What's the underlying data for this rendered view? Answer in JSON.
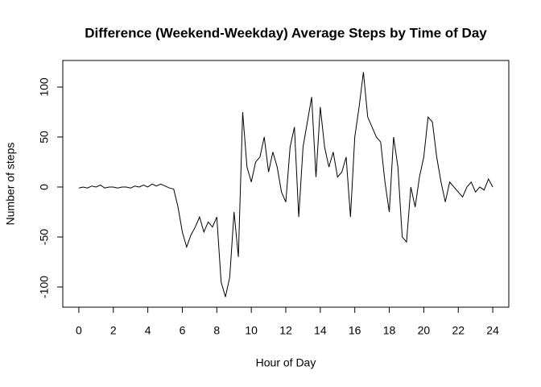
{
  "chart_data": {
    "type": "line",
    "title": "Difference (Weekend-Weekday) Average Steps by Time of Day",
    "x_label": "Hour of Day",
    "y_label": "Number of steps",
    "xlim": [
      -0.93,
      24.93
    ],
    "ylim": [
      -120.2,
      126.6
    ],
    "xticks": [
      0,
      2,
      4,
      6,
      8,
      10,
      12,
      14,
      16,
      18,
      20,
      22,
      24
    ],
    "yticks": [
      -100,
      -50,
      0,
      50,
      100
    ],
    "x": [
      0,
      0.25,
      0.5,
      0.75,
      1,
      1.25,
      1.5,
      1.75,
      2,
      2.25,
      2.5,
      2.75,
      3,
      3.25,
      3.5,
      3.75,
      4,
      4.25,
      4.5,
      4.75,
      5,
      5.25,
      5.5,
      5.75,
      6,
      6.25,
      6.5,
      6.75,
      7,
      7.25,
      7.5,
      7.75,
      8,
      8.25,
      8.5,
      8.75,
      9,
      9.25,
      9.5,
      9.75,
      10,
      10.25,
      10.5,
      10.75,
      11,
      11.25,
      11.5,
      11.75,
      12,
      12.25,
      12.5,
      12.75,
      13,
      13.25,
      13.5,
      13.75,
      14,
      14.25,
      14.5,
      14.75,
      15,
      15.25,
      15.5,
      15.75,
      16,
      16.25,
      16.5,
      16.75,
      17,
      17.25,
      17.5,
      17.75,
      18,
      18.25,
      18.5,
      18.75,
      19,
      19.25,
      19.5,
      19.75,
      20,
      20.25,
      20.5,
      20.75,
      21,
      21.25,
      21.5,
      21.75,
      22,
      22.25,
      22.5,
      22.75,
      23,
      23.25,
      23.5,
      23.75,
      24
    ],
    "series": [
      {
        "color": "#000000",
        "values": [
          -1,
          0,
          -1,
          1,
          0,
          2,
          -1,
          0,
          0,
          -1,
          0,
          0,
          -1,
          1,
          0,
          2,
          0,
          3,
          1,
          3,
          1,
          -1,
          -2,
          -20,
          -45,
          -60,
          -48,
          -40,
          -30,
          -45,
          -35,
          -40,
          -30,
          -95,
          -110,
          -90,
          -25,
          -70,
          75,
          20,
          5,
          25,
          30,
          50,
          15,
          35,
          20,
          -5,
          -15,
          40,
          60,
          -30,
          40,
          65,
          90,
          10,
          80,
          40,
          20,
          35,
          10,
          15,
          30,
          -30,
          50,
          80,
          115,
          70,
          60,
          50,
          45,
          5,
          -25,
          50,
          20,
          -50,
          -55,
          0,
          -20,
          10,
          30,
          70,
          65,
          30,
          5,
          -15,
          5,
          0,
          -5,
          -10,
          0,
          5,
          -5,
          0,
          -3,
          8,
          0
        ]
      }
    ]
  }
}
